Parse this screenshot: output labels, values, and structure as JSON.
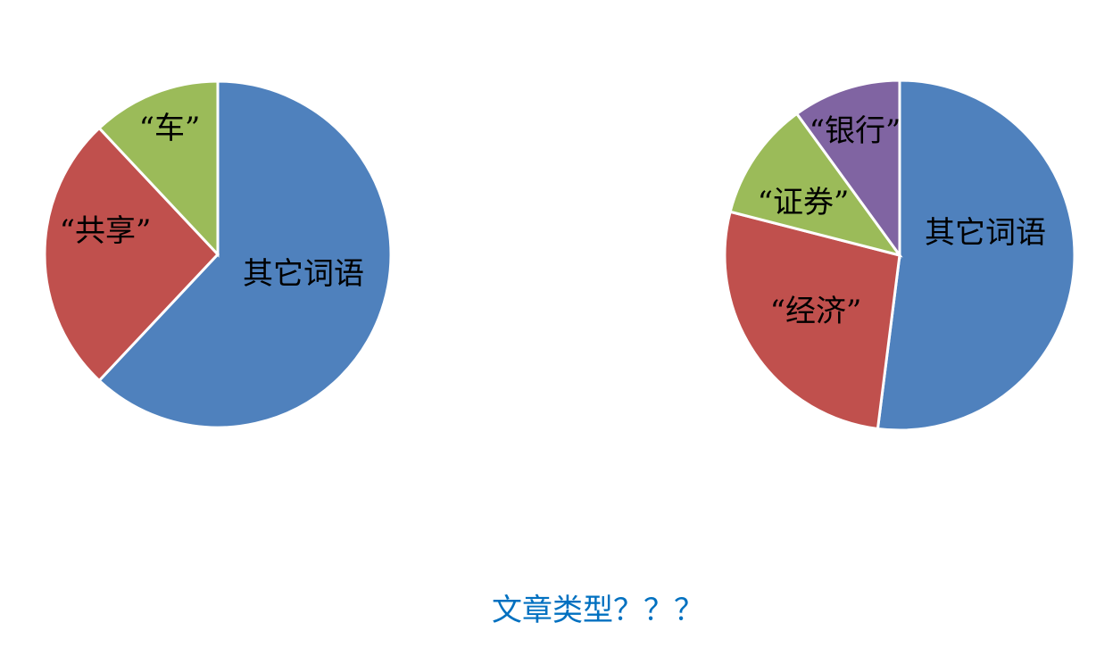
{
  "chart_data": [
    {
      "type": "pie",
      "categories": [
        "其它词语",
        "“共享”",
        "“车”"
      ],
      "values": [
        62,
        26,
        12
      ],
      "colors": [
        "#4F81BD",
        "#C0504D",
        "#9BBB59"
      ],
      "start": "top, clockwise"
    },
    {
      "type": "pie",
      "categories": [
        "其它词语",
        "“经济”",
        "“证券”",
        "“银行”"
      ],
      "values": [
        52,
        27,
        11,
        10
      ],
      "colors": [
        "#4F81BD",
        "#C0504D",
        "#9BBB59",
        "#8064A2"
      ],
      "start": "top, clockwise"
    }
  ],
  "caption": "文章类型？？？",
  "caption_color": "#0070C0"
}
